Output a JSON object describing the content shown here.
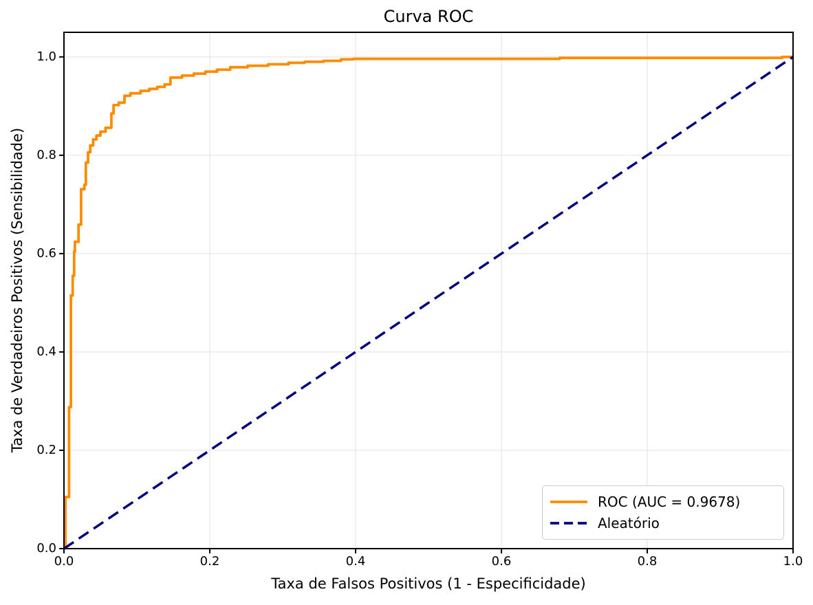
{
  "title": "Curva ROC",
  "axes": {
    "xlabel": "Taxa de Falsos Positivos (1 - Especificidade)",
    "ylabel": "Taxa de Verdadeiros Positivos (Sensibilidade)",
    "x_tick_labels": [
      "0.0",
      "0.2",
      "0.4",
      "0.6",
      "0.8",
      "1.0"
    ],
    "y_tick_labels": [
      "0.0",
      "0.2",
      "0.4",
      "0.6",
      "0.8",
      "1.0"
    ]
  },
  "colors": {
    "roc": "#FF8C00",
    "baseline": "#000080",
    "grid": "#e6e6e6",
    "spine": "#000000",
    "text": "#000000",
    "legend_border": "#cccccc",
    "background": "#ffffff"
  },
  "legend": {
    "position": "lower right"
  },
  "chart_data": {
    "type": "line",
    "title": "Curva ROC",
    "xlabel": "Taxa de Falsos Positivos (1 - Especificidade)",
    "ylabel": "Taxa de Verdadeiros Positivos (Sensibilidade)",
    "xlim": [
      0,
      1
    ],
    "ylim": [
      0,
      1.05
    ],
    "x_ticks": [
      0,
      0.2,
      0.4,
      0.6,
      0.8,
      1.0
    ],
    "y_ticks": [
      0,
      0.2,
      0.4,
      0.6,
      0.8,
      1.0
    ],
    "grid": true,
    "legend_position": "lower right",
    "series": [
      {
        "name": "ROC (AUC = 0.9678)",
        "color": "#FF8C00",
        "style": "solid",
        "auc": 0.9678,
        "points": [
          [
            0.002,
            0.0
          ],
          [
            0.002,
            0.105
          ],
          [
            0.007,
            0.105
          ],
          [
            0.007,
            0.288
          ],
          [
            0.0095,
            0.288
          ],
          [
            0.0095,
            0.515
          ],
          [
            0.012,
            0.515
          ],
          [
            0.012,
            0.555
          ],
          [
            0.014,
            0.555
          ],
          [
            0.014,
            0.604
          ],
          [
            0.015,
            0.604
          ],
          [
            0.015,
            0.624
          ],
          [
            0.02,
            0.624
          ],
          [
            0.02,
            0.659
          ],
          [
            0.0235,
            0.659
          ],
          [
            0.0235,
            0.731
          ],
          [
            0.028,
            0.731
          ],
          [
            0.028,
            0.74
          ],
          [
            0.03,
            0.74
          ],
          [
            0.03,
            0.785
          ],
          [
            0.033,
            0.785
          ],
          [
            0.033,
            0.806
          ],
          [
            0.036,
            0.806
          ],
          [
            0.036,
            0.82
          ],
          [
            0.04,
            0.82
          ],
          [
            0.04,
            0.832
          ],
          [
            0.0445,
            0.832
          ],
          [
            0.0445,
            0.84
          ],
          [
            0.05,
            0.84
          ],
          [
            0.05,
            0.848
          ],
          [
            0.057,
            0.848
          ],
          [
            0.057,
            0.856
          ],
          [
            0.065,
            0.856
          ],
          [
            0.065,
            0.885
          ],
          [
            0.068,
            0.885
          ],
          [
            0.068,
            0.902
          ],
          [
            0.075,
            0.902
          ],
          [
            0.075,
            0.907
          ],
          [
            0.083,
            0.907
          ],
          [
            0.083,
            0.921
          ],
          [
            0.091,
            0.921
          ],
          [
            0.091,
            0.926
          ],
          [
            0.105,
            0.926
          ],
          [
            0.105,
            0.931
          ],
          [
            0.117,
            0.931
          ],
          [
            0.117,
            0.935
          ],
          [
            0.128,
            0.935
          ],
          [
            0.128,
            0.939
          ],
          [
            0.138,
            0.939
          ],
          [
            0.138,
            0.944
          ],
          [
            0.146,
            0.944
          ],
          [
            0.146,
            0.958
          ],
          [
            0.162,
            0.958
          ],
          [
            0.162,
            0.962
          ],
          [
            0.178,
            0.962
          ],
          [
            0.178,
            0.966
          ],
          [
            0.194,
            0.966
          ],
          [
            0.194,
            0.97
          ],
          [
            0.21,
            0.97
          ],
          [
            0.21,
            0.974
          ],
          [
            0.228,
            0.974
          ],
          [
            0.228,
            0.979
          ],
          [
            0.252,
            0.979
          ],
          [
            0.252,
            0.982
          ],
          [
            0.28,
            0.982
          ],
          [
            0.28,
            0.985
          ],
          [
            0.308,
            0.985
          ],
          [
            0.308,
            0.988
          ],
          [
            0.33,
            0.988
          ],
          [
            0.33,
            0.99
          ],
          [
            0.356,
            0.99
          ],
          [
            0.356,
            0.992
          ],
          [
            0.38,
            0.992
          ],
          [
            0.38,
            0.995
          ],
          [
            0.397,
            0.995
          ],
          [
            0.397,
            0.996
          ],
          [
            0.68,
            0.996
          ],
          [
            0.68,
            0.998
          ],
          [
            0.985,
            0.998
          ],
          [
            0.985,
            1.0
          ],
          [
            1.0,
            1.0
          ]
        ]
      },
      {
        "name": "Aleatório",
        "color": "#000080",
        "style": "dashed",
        "points": [
          [
            0,
            0
          ],
          [
            1,
            1
          ]
        ]
      }
    ]
  }
}
